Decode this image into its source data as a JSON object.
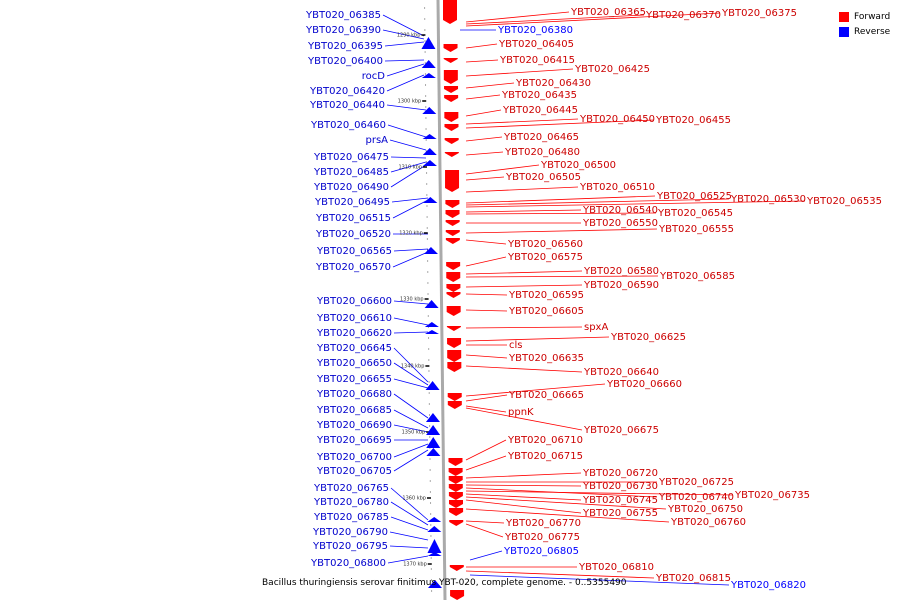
{
  "caption": "Bacillus thuringiensis serovar finitimus YBT-020, complete genome. - 0..5355490",
  "legend": [
    {
      "label": "Forward",
      "color": "#ff0000"
    },
    {
      "label": "Reverse",
      "color": "#0000ff"
    }
  ],
  "colors": {
    "forward": "#ff0000",
    "reverse": "#0000ff",
    "backbone": "#aaaaaa"
  },
  "scale_labels": [
    "1290 kbp",
    "1300 kbp",
    "1310 kbp",
    "1320 kbp",
    "1330 kbp",
    "1340 kbp",
    "1350 kbp",
    "1360 kbp",
    "1370 kbp"
  ],
  "reverse_genes": [
    "YBT020_06385",
    "YBT020_06390",
    "YBT020_06395",
    "YBT020_06400",
    "rocD",
    "YBT020_06420",
    "YBT020_06440",
    "YBT020_06460",
    "prsA",
    "YBT020_06475",
    "YBT020_06485",
    "YBT020_06490",
    "YBT020_06495",
    "YBT020_06515",
    "YBT020_06520",
    "YBT020_06565",
    "YBT020_06570",
    "YBT020_06600",
    "YBT020_06610",
    "YBT020_06620",
    "YBT020_06645",
    "YBT020_06650",
    "YBT020_06655",
    "YBT020_06680",
    "YBT020_06685",
    "YBT020_06690",
    "YBT020_06695",
    "YBT020_06700",
    "YBT020_06705",
    "YBT020_06765",
    "YBT020_06780",
    "YBT020_06785",
    "YBT020_06790",
    "YBT020_06795",
    "YBT020_06800"
  ],
  "reverse_genes_right": [
    "YBT020_06380",
    "YBT020_06805",
    "YBT020_06820"
  ],
  "forward_genes": [
    "YBT020_06365",
    "YBT020_06370",
    "YBT020_06375",
    "YBT020_06405",
    "YBT020_06415",
    "YBT020_06425",
    "YBT020_06430",
    "YBT020_06435",
    "YBT020_06445",
    "YBT020_06450",
    "YBT020_06455",
    "YBT020_06465",
    "YBT020_06480",
    "YBT020_06500",
    "YBT020_06505",
    "YBT020_06510",
    "YBT020_06525",
    "YBT020_06530",
    "YBT020_06535",
    "YBT020_06540",
    "YBT020_06545",
    "YBT020_06550",
    "YBT020_06555",
    "YBT020_06560",
    "YBT020_06575",
    "YBT020_06580",
    "YBT020_06585",
    "YBT020_06590",
    "YBT020_06595",
    "YBT020_06605",
    "spxA",
    "YBT020_06625",
    "cls",
    "YBT020_06635",
    "YBT020_06640",
    "YBT020_06660",
    "YBT020_06665",
    "ppnK",
    "YBT020_06675",
    "YBT020_06710",
    "YBT020_06715",
    "YBT020_06720",
    "YBT020_06725",
    "YBT020_06730",
    "YBT020_06740",
    "YBT020_06735",
    "YBT020_06745",
    "YBT020_06750",
    "YBT020_06755",
    "YBT020_06760",
    "YBT020_06770",
    "YBT020_06775",
    "YBT020_06810",
    "YBT020_06815"
  ]
}
